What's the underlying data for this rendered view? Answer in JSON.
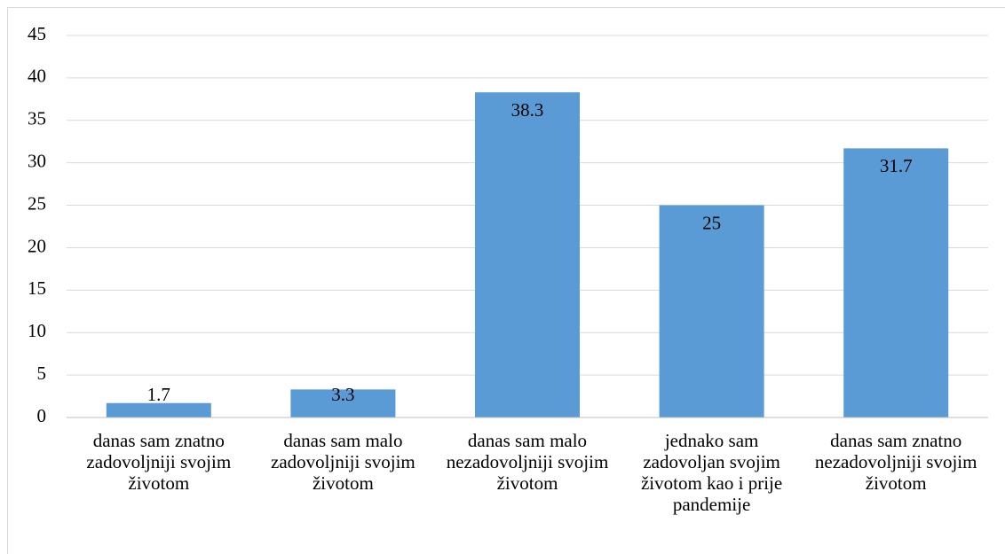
{
  "chart_data": {
    "type": "bar",
    "categories": [
      "danas sam znatno zadovoljniji svojim životom",
      "danas sam malo zadovoljniji svojim životom",
      "danas sam malo nezadovoljniji svojim životom",
      "jednako sam zadovoljan svojim životom kao i prije pandemije",
      "danas sam znatno nezadovoljniji svojim životom"
    ],
    "values": [
      1.7,
      3.3,
      38.3,
      25,
      31.7
    ],
    "color": "#5b9bd5",
    "ylim": [
      0,
      45
    ],
    "yticks": [
      0,
      5,
      10,
      15,
      20,
      25,
      30,
      35,
      40,
      45
    ],
    "grid": true
  }
}
